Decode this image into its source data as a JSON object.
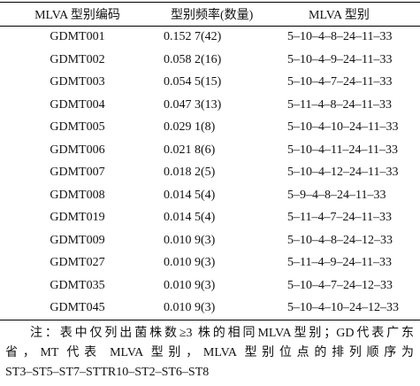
{
  "table": {
    "header": [
      "MLVA 型别编码",
      "型别频率(数量)",
      "MLVA 型别"
    ],
    "rows": [
      [
        "GDMT001",
        "0.152 7(42)",
        "5–10–4–8–24–11–33"
      ],
      [
        "GDMT002",
        "0.058 2(16)",
        "5–10–4–9–24–11–33"
      ],
      [
        "GDMT003",
        "0.054 5(15)",
        "5–10–4–7–24–11–33"
      ],
      [
        "GDMT004",
        "0.047 3(13)",
        "5–11–4–8–24–11–33"
      ],
      [
        "GDMT005",
        "0.029 1(8)",
        "5–10–4–10–24–11–33"
      ],
      [
        "GDMT006",
        "0.021 8(6)",
        "5–10–4–11–24–11–33"
      ],
      [
        "GDMT007",
        "0.018 2(5)",
        "5–10–4–12–24–11–33"
      ],
      [
        "GDMT008",
        "0.014 5(4)",
        "5–9–4–8–24–11–33"
      ],
      [
        "GDMT019",
        "0.014 5(4)",
        "5–11–4–7–24–11–33"
      ],
      [
        "GDMT009",
        "0.010 9(3)",
        "5–10–4–8–24–12–33"
      ],
      [
        "GDMT027",
        "0.010 9(3)",
        "5–11–4–9–24–11–33"
      ],
      [
        "GDMT035",
        "0.010 9(3)",
        "5–10–4–7–24–12–33"
      ],
      [
        "GDMT045",
        "0.010 9(3)",
        "5–10–4–10–24–12–33"
      ]
    ]
  },
  "note": [
    "注：表中仅列出菌株数≥3 株的相同MLVA型别；GD代表广东",
    "省，MT 代表 MLVA 型别，MLVA 型别位点的排列顺序为",
    "ST3–ST5–ST7–STTR10–ST2–ST6–ST8"
  ]
}
